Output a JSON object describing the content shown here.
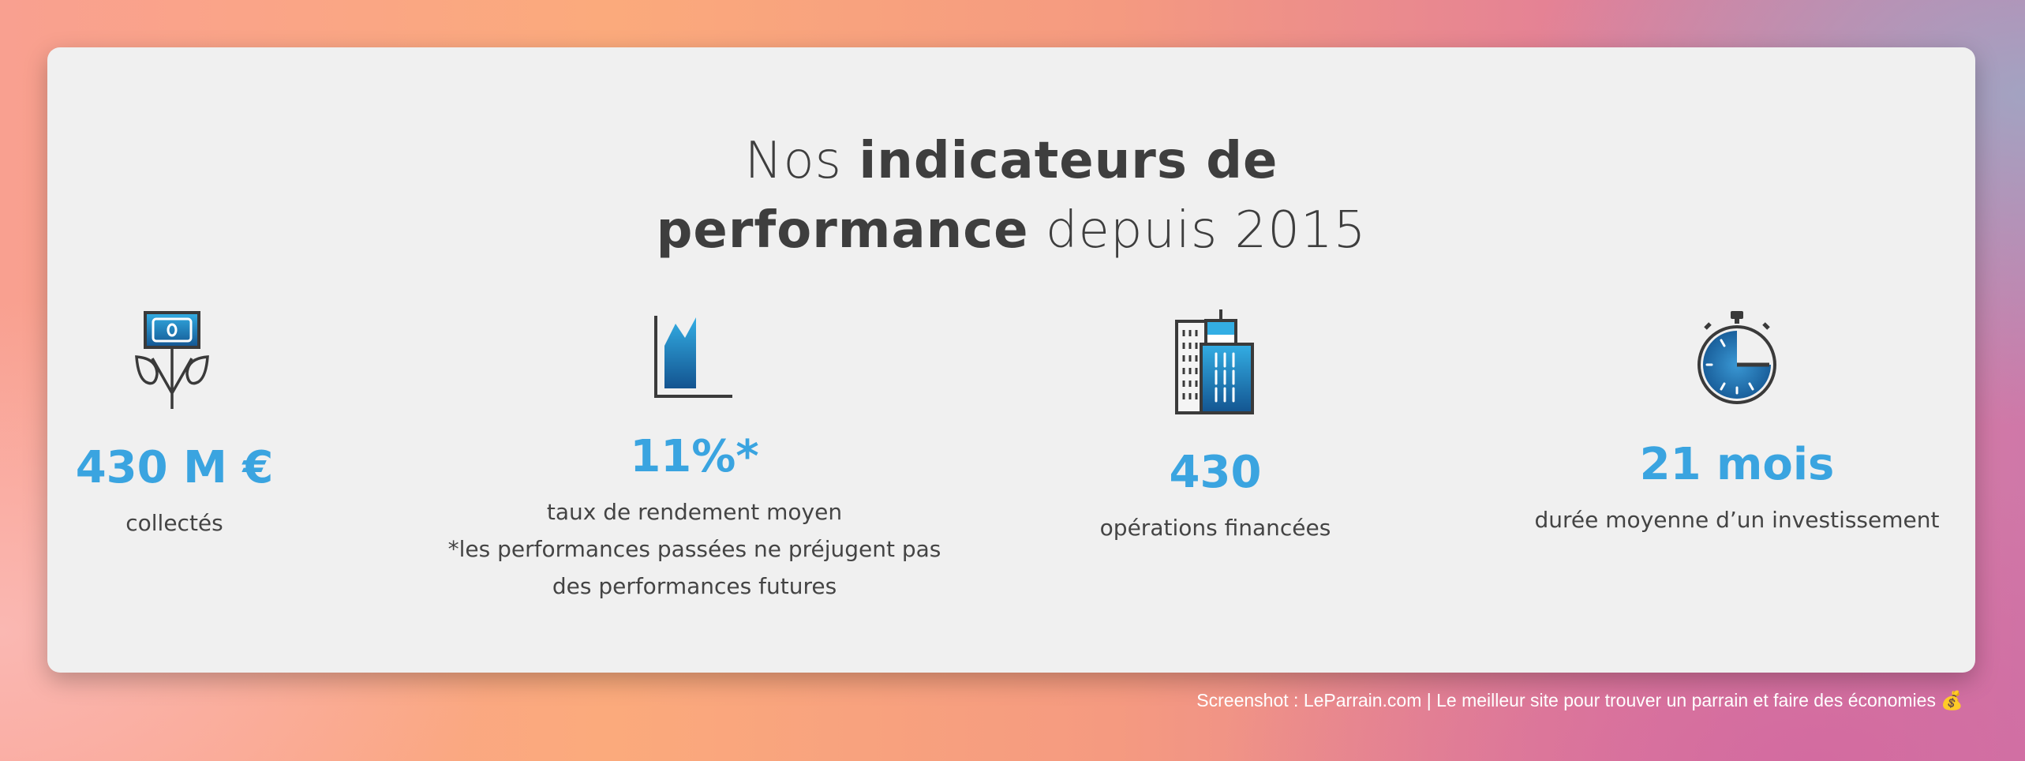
{
  "title": {
    "part1": "Nos ",
    "bold1": "indicateurs de",
    "bold2": "performance",
    "part2": " depuis 2015"
  },
  "accent_color": "#3aa4e0",
  "stats": [
    {
      "icon": "money-plant-icon",
      "value": "430 M €",
      "label": [
        "collectés"
      ]
    },
    {
      "icon": "area-chart-icon",
      "value": "11%*",
      "label": [
        "taux de rendement moyen",
        "*les performances passées ne préjugent pas",
        "des performances futures"
      ]
    },
    {
      "icon": "buildings-icon",
      "value": "430",
      "label": [
        "opérations financées"
      ]
    },
    {
      "icon": "stopwatch-icon",
      "value": "21 mois",
      "label": [
        "durée moyenne d’un investissement"
      ]
    }
  ],
  "footer": "Screenshot : LeParrain.com | Le meilleur site pour trouver un parrain et faire des économies 💰"
}
